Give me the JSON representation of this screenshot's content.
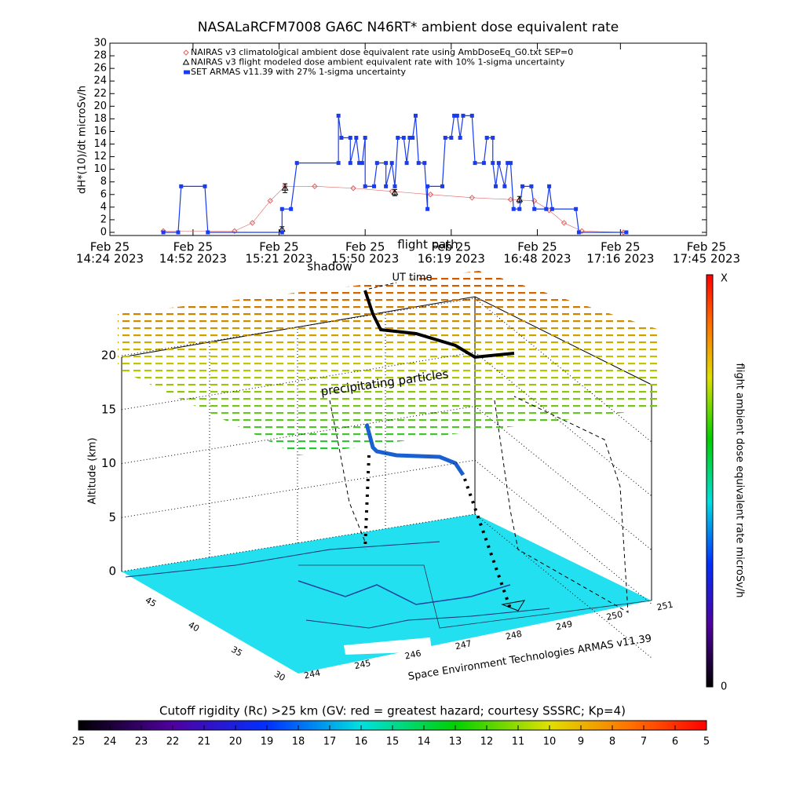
{
  "chart_data": [
    {
      "type": "line",
      "title": "NASALaRCFM7008  GA6C N46RT* ambient dose equivalent rate",
      "y_label": "dH*(10)/dt microSv/h",
      "legend": "upper center",
      "xlim": [
        "2023-02-25 14:24",
        "2023-02-25 17:45"
      ],
      "xticks": [
        {
          "value": "2023-02-25 14:24",
          "label": [
            "Feb 25",
            "14:24 2023"
          ]
        },
        {
          "value": "2023-02-25 14:52",
          "label": [
            "Feb 25",
            "14:52 2023"
          ]
        },
        {
          "value": "2023-02-25 15:21",
          "label": [
            "Feb 25",
            "15:21 2023"
          ]
        },
        {
          "value": "2023-02-25 15:50",
          "label": [
            "Feb 25",
            "15:50 2023"
          ]
        },
        {
          "value": "2023-02-25 16:19",
          "label": [
            "Feb 25",
            "16:19 2023"
          ]
        },
        {
          "value": "2023-02-25 16:48",
          "label": [
            "Feb 25",
            "16:48 2023"
          ]
        },
        {
          "value": "2023-02-25 17:16",
          "label": [
            "Feb 25",
            "17:16 2023"
          ]
        },
        {
          "value": "2023-02-25 17:45",
          "label": [
            "Feb 25",
            "17:45 2023"
          ]
        }
      ],
      "ylim": [
        -0.5,
        30
      ],
      "yticks": [
        0,
        2,
        4,
        6,
        8,
        10,
        12,
        14,
        16,
        18,
        20,
        22,
        24,
        26,
        28,
        30
      ],
      "series": [
        {
          "name": "NAIRAS v3 climatological ambient dose equivalent rate using AmbDoseEq_G0.txt SEP=0",
          "color": "#e06060",
          "marker": "diamond",
          "x": [
            "2023-02-25 14:42",
            "2023-02-25 15:06",
            "2023-02-25 15:12",
            "2023-02-25 15:18",
            "2023-02-25 15:23",
            "2023-02-25 15:33",
            "2023-02-25 15:46",
            "2023-02-25 15:59",
            "2023-02-25 16:12",
            "2023-02-25 16:26",
            "2023-02-25 16:39",
            "2023-02-25 16:47",
            "2023-02-25 16:52",
            "2023-02-25 16:57",
            "2023-02-25 17:03",
            "2023-02-25 17:17"
          ],
          "values": [
            0.2,
            0.2,
            1.5,
            5,
            7.3,
            7.3,
            7,
            6.5,
            6,
            5.5,
            5.2,
            5,
            3.5,
            1.5,
            0.2,
            0
          ]
        },
        {
          "name": "NAIRAS v3 flight modeled dose ambient equivalent rate with 10% 1-sigma uncertainty",
          "color": "#000000",
          "marker": "triangle",
          "x": [
            "2023-02-25 15:22",
            "2023-02-25 15:23",
            "2023-02-25 16:00",
            "2023-02-25 16:42"
          ],
          "values": [
            0.5,
            7,
            6.3,
            5.2
          ],
          "errors": [
            0.4,
            0.7,
            0.5,
            0.5
          ]
        },
        {
          "name": "SET ARMAS v11.39 with 27% 1-sigma uncertainty",
          "color": "#1a3cf0",
          "marker": "square",
          "x": [
            "2023-02-25 14:42",
            "2023-02-25 14:47",
            "2023-02-25 14:48",
            "2023-02-25 14:56",
            "2023-02-25 14:57",
            "2023-02-25 15:22",
            "2023-02-25 15:22",
            "2023-02-25 15:25",
            "2023-02-25 15:27",
            "2023-02-25 15:41",
            "2023-02-25 15:41",
            "2023-02-25 15:42",
            "2023-02-25 15:45",
            "2023-02-25 15:45",
            "2023-02-25 15:47",
            "2023-02-25 15:48",
            "2023-02-25 15:49",
            "2023-02-25 15:50",
            "2023-02-25 15:50",
            "2023-02-25 15:53",
            "2023-02-25 15:54",
            "2023-02-25 15:57",
            "2023-02-25 15:57",
            "2023-02-25 15:59",
            "2023-02-25 16:00",
            "2023-02-25 16:01",
            "2023-02-25 16:03",
            "2023-02-25 16:04",
            "2023-02-25 16:05",
            "2023-02-25 16:06",
            "2023-02-25 16:07",
            "2023-02-25 16:08",
            "2023-02-25 16:10",
            "2023-02-25 16:11",
            "2023-02-25 16:11",
            "2023-02-25 16:16",
            "2023-02-25 16:17",
            "2023-02-25 16:19",
            "2023-02-25 16:20",
            "2023-02-25 16:21",
            "2023-02-25 16:22",
            "2023-02-25 16:23",
            "2023-02-25 16:26",
            "2023-02-25 16:27",
            "2023-02-25 16:30",
            "2023-02-25 16:31",
            "2023-02-25 16:33",
            "2023-02-25 16:33",
            "2023-02-25 16:34",
            "2023-02-25 16:35",
            "2023-02-25 16:37",
            "2023-02-25 16:38",
            "2023-02-25 16:39",
            "2023-02-25 16:40",
            "2023-02-25 16:42",
            "2023-02-25 16:43",
            "2023-02-25 16:46",
            "2023-02-25 16:47",
            "2023-02-25 16:51",
            "2023-02-25 16:52",
            "2023-02-25 16:53",
            "2023-02-25 17:01",
            "2023-02-25 17:02",
            "2023-02-25 17:18"
          ],
          "values": [
            0,
            0,
            7.3,
            7.3,
            0,
            0,
            3.7,
            3.7,
            11,
            11,
            18.5,
            15,
            15,
            11,
            15,
            11,
            11,
            15,
            7.3,
            7.3,
            11,
            11,
            7.3,
            11,
            7.3,
            15,
            15,
            11,
            15,
            15,
            18.5,
            11,
            11,
            3.7,
            7.3,
            7.3,
            15,
            15,
            18.5,
            18.5,
            15,
            18.5,
            18.5,
            11,
            11,
            15,
            15,
            11,
            7.3,
            11,
            7.3,
            11,
            11,
            3.7,
            3.7,
            7.3,
            7.3,
            3.7,
            3.7,
            7.3,
            3.7,
            3.7,
            0,
            0
          ]
        }
      ]
    },
    {
      "type": "scatter3d",
      "z_label": "Altitude (km)",
      "zlim": [
        0,
        20
      ],
      "zticks": [
        0,
        5,
        10,
        15,
        20
      ],
      "ylim": [
        29,
        50
      ],
      "yticks": [
        30,
        35,
        40,
        45
      ],
      "xlim": [
        243.8,
        251.2
      ],
      "xticks": [
        244,
        245,
        246,
        247,
        248,
        249,
        250,
        251
      ],
      "annotations": [
        "shadow",
        "flight path",
        "UT time",
        "precipitating particles"
      ],
      "credit": "Space Environment Technologies ARMAS v11.39"
    },
    {
      "type": "colorbar",
      "label": "flight ambient dose equivalent rate microSv/h",
      "ticks": [
        0
      ],
      "top_label": "X"
    },
    {
      "type": "colorbar",
      "title": "Cutoff rigidity (Rc) >25 km (GV: red = greatest hazard; courtesy SSSRC; Kp=4)",
      "lim": [
        25,
        5
      ],
      "ticks": [
        25,
        24,
        23,
        22,
        21,
        20,
        19,
        18,
        17,
        16,
        15,
        14,
        13,
        12,
        11,
        10,
        9,
        8,
        7,
        6,
        5
      ]
    }
  ]
}
